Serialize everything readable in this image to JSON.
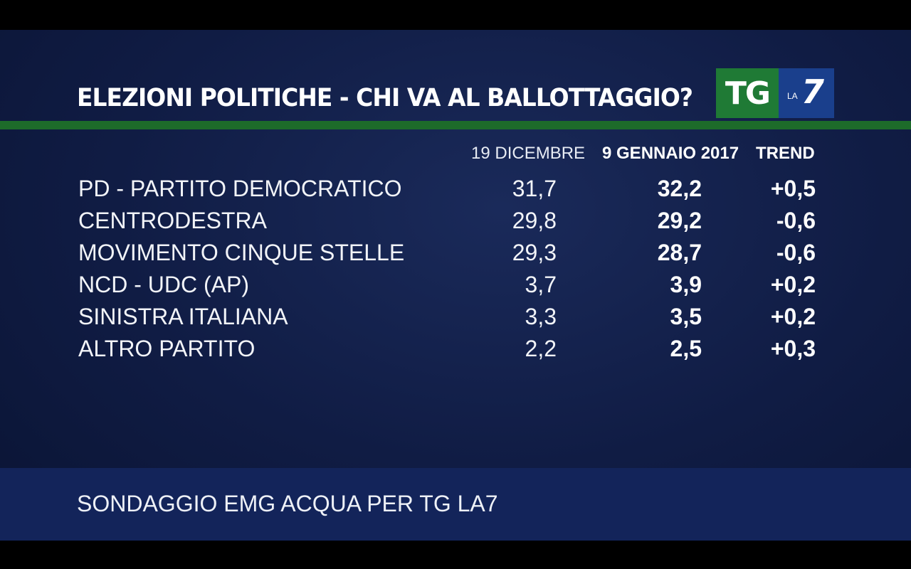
{
  "header": {
    "title": "ELEZIONI POLITICHE - CHI VA AL BALLOTTAGGIO?",
    "logo_tg": "TG",
    "logo_la": "LA",
    "logo_seven": "7"
  },
  "columns": {
    "col1": "19 DICEMBRE",
    "col2": "9 GENNAIO 2017",
    "col3": "TREND"
  },
  "rows": [
    {
      "party": "PD - PARTITO DEMOCRATICO",
      "v1": "31,7",
      "v2": "32,2",
      "trend": "+0,5"
    },
    {
      "party": "CENTRODESTRA",
      "v1": "29,8",
      "v2": "29,2",
      "trend": "-0,6"
    },
    {
      "party": "MOVIMENTO CINQUE STELLE",
      "v1": "29,3",
      "v2": "28,7",
      "trend": "-0,6"
    },
    {
      "party": "NCD - UDC (AP)",
      "v1": "3,7",
      "v2": "3,9",
      "trend": "+0,2"
    },
    {
      "party": "SINISTRA ITALIANA",
      "v1": "3,3",
      "v2": "3,5",
      "trend": "+0,2"
    },
    {
      "party": "ALTRO PARTITO",
      "v1": "2,2",
      "v2": "2,5",
      "trend": "+0,3"
    }
  ],
  "footer": {
    "source": "SONDAGGIO EMG ACQUA PER TG LA7"
  },
  "colors": {
    "background": "#101c44",
    "green_rule": "#1d6b2a",
    "logo_green": "#1f7a35",
    "logo_blue": "#1a3f8c",
    "footer": "#13245a"
  }
}
